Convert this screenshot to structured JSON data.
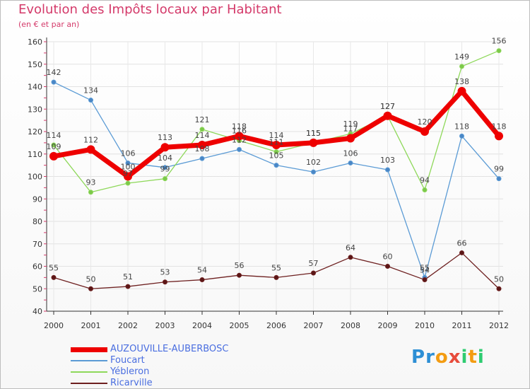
{
  "title": "Evolution des Impôts locaux par Habitant",
  "subtitle": "(en € et par an)",
  "logo": {
    "text": "Proxiti",
    "letters": [
      "P",
      "r",
      "o",
      "x",
      "i",
      "t",
      "i"
    ],
    "colors": [
      "#2d8fd5",
      "#2d8fd5",
      "#f39c12",
      "#e74c3c",
      "#2ecc71",
      "#f39c12",
      "#2ecc71"
    ]
  },
  "chart_data": {
    "type": "line",
    "title": "Evolution des Impôts locaux par Habitant",
    "subtitle": "(en € et par an)",
    "xlabel": "",
    "ylabel": "",
    "categories": [
      "2000",
      "2001",
      "2002",
      "2003",
      "2004",
      "2005",
      "2006",
      "2007",
      "2008",
      "2009",
      "2010",
      "2011",
      "2012"
    ],
    "ylim": [
      40,
      160
    ],
    "yticks": [
      "40",
      "50",
      "60",
      "70",
      "80",
      "90",
      "100",
      "110",
      "120",
      "130",
      "140",
      "150",
      "160"
    ],
    "grid": true,
    "legend_position": "bottom-left",
    "series": [
      {
        "name": "Foucart",
        "color": "#5b9bd5",
        "width": 1.3,
        "marker": 3,
        "markerFill": "#4a86c5",
        "values": [
          142,
          134,
          106,
          104,
          108,
          112,
          105,
          102,
          106,
          103,
          55,
          118,
          99
        ]
      },
      {
        "name": "Yébleron",
        "color": "#8ed85a",
        "width": 1.3,
        "marker": 3,
        "markerFill": "#7cc84a",
        "values": [
          114,
          93,
          97,
          99,
          121,
          116,
          111,
          115,
          119,
          127,
          94,
          149,
          156
        ]
      },
      {
        "name": "Ricarville",
        "color": "#6e2020",
        "width": 1.3,
        "marker": 3,
        "markerFill": "#5a1616",
        "values": [
          55,
          50,
          51,
          53,
          54,
          56,
          55,
          57,
          64,
          60,
          54,
          66,
          50
        ]
      },
      {
        "name": "AUZOUVILLE-AUBERBOSC",
        "color": "#ee0000",
        "width": 7,
        "marker": 5.5,
        "markerFill": "#ee0000",
        "values": [
          109,
          112,
          100,
          113,
          114,
          118,
          114,
          115,
          117,
          127,
          120,
          138,
          118
        ]
      }
    ],
    "legend_order": [
      "AUZOUVILLE-AUBERBOSC",
      "Foucart",
      "Yébleron",
      "Ricarville"
    ]
  }
}
